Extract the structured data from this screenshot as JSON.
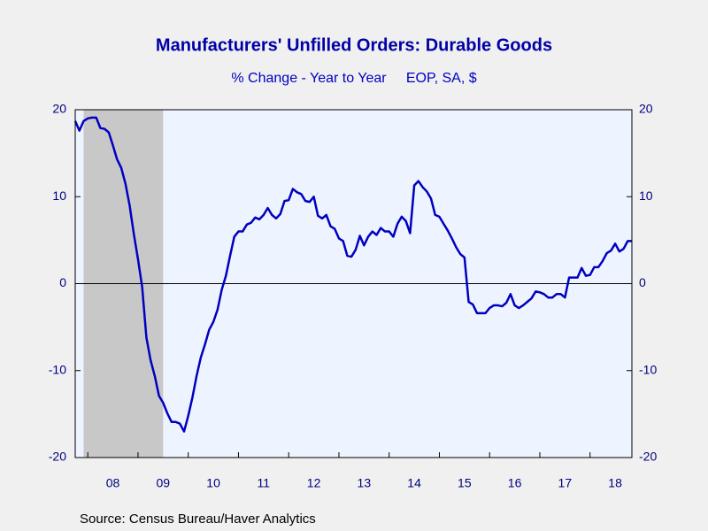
{
  "chart_data": {
    "type": "line",
    "title": "Manufacturers' Unfilled Orders: Durable Goods",
    "subtitle": "% Change - Year to Year     EOP, SA, $",
    "source": "Source:  Census Bureau/Haver Analytics",
    "x": [
      2007.75,
      2007.833,
      2007.917,
      2008,
      2008.083,
      2008.167,
      2008.25,
      2008.333,
      2008.417,
      2008.5,
      2008.583,
      2008.667,
      2008.75,
      2008.833,
      2008.917,
      2009,
      2009.083,
      2009.167,
      2009.25,
      2009.333,
      2009.417,
      2009.5,
      2009.583,
      2009.667,
      2009.75,
      2009.833,
      2009.917,
      2010,
      2010.083,
      2010.167,
      2010.25,
      2010.333,
      2010.417,
      2010.5,
      2010.583,
      2010.667,
      2010.75,
      2010.833,
      2010.917,
      2011,
      2011.083,
      2011.167,
      2011.25,
      2011.333,
      2011.417,
      2011.5,
      2011.583,
      2011.667,
      2011.75,
      2011.833,
      2011.917,
      2012,
      2012.083,
      2012.167,
      2012.25,
      2012.333,
      2012.417,
      2012.5,
      2012.583,
      2012.667,
      2012.75,
      2012.833,
      2012.917,
      2013,
      2013.083,
      2013.167,
      2013.25,
      2013.333,
      2013.417,
      2013.5,
      2013.583,
      2013.667,
      2013.75,
      2013.833,
      2013.917,
      2014,
      2014.083,
      2014.167,
      2014.25,
      2014.333,
      2014.417,
      2014.5,
      2014.583,
      2014.667,
      2014.75,
      2014.833,
      2014.917,
      2015,
      2015.083,
      2015.167,
      2015.25,
      2015.333,
      2015.417,
      2015.5,
      2015.583,
      2015.667,
      2015.75,
      2015.833,
      2015.917,
      2016,
      2016.083,
      2016.167,
      2016.25,
      2016.333,
      2016.417,
      2016.5,
      2016.583,
      2016.667,
      2016.75,
      2016.833,
      2016.917,
      2017,
      2017.083,
      2017.167,
      2017.25,
      2017.333,
      2017.417,
      2017.5,
      2017.583,
      2017.667,
      2017.75,
      2017.833,
      2017.917,
      2018,
      2018.083,
      2018.167,
      2018.25,
      2018.333,
      2018.417,
      2018.5,
      2018.583,
      2018.667,
      2018.75,
      2018.833
    ],
    "series": [
      {
        "color": "#0000c0",
        "values": [
          18.7,
          17.6,
          18.7,
          19.0,
          19.1,
          19.1,
          17.9,
          17.8,
          17.4,
          15.9,
          14.3,
          13.3,
          11.5,
          9.0,
          5.7,
          2.8,
          -0.4,
          -6.2,
          -8.8,
          -10.6,
          -12.9,
          -13.7,
          -14.9,
          -15.9,
          -15.9,
          -16.1,
          -17.0,
          -15.2,
          -13.1,
          -10.6,
          -8.5,
          -7.0,
          -5.3,
          -4.4,
          -3.0,
          -0.7,
          0.9,
          3.2,
          5.4,
          6.0,
          6.0,
          6.8,
          7.0,
          7.6,
          7.4,
          7.9,
          8.7,
          7.9,
          7.5,
          8.0,
          9.5,
          9.6,
          10.9,
          10.5,
          10.3,
          9.5,
          9.4,
          10.0,
          7.8,
          7.5,
          7.9,
          6.6,
          6.3,
          5.2,
          4.9,
          3.2,
          3.1,
          3.9,
          5.5,
          4.4,
          5.4,
          6.0,
          5.6,
          6.4,
          6.0,
          6.0,
          5.4,
          6.9,
          7.7,
          7.2,
          5.8,
          11.3,
          11.8,
          11.1,
          10.6,
          9.8,
          7.9,
          7.7,
          6.9,
          6.1,
          5.2,
          4.2,
          3.4,
          3.0,
          -2.1,
          -2.4,
          -3.4,
          -3.4,
          -3.4,
          -2.8,
          -2.5,
          -2.5,
          -2.6,
          -2.2,
          -1.2,
          -2.5,
          -2.8,
          -2.5,
          -2.1,
          -1.7,
          -0.9,
          -1.0,
          -1.2,
          -1.6,
          -1.6,
          -1.2,
          -1.2,
          -1.6,
          0.7,
          0.7,
          0.7,
          1.8,
          0.9,
          1.0,
          1.9,
          1.9,
          2.6,
          3.5,
          3.8,
          4.6,
          3.7,
          4.0,
          4.9,
          4.9
        ]
      }
    ],
    "xlim": [
      2007.75,
      2018.833
    ],
    "xticks": [
      2008,
      2009,
      2010,
      2011,
      2012,
      2013,
      2014,
      2015,
      2016,
      2017,
      2018
    ],
    "xtick_labels": [
      {
        "value": 2008.5,
        "label": "08"
      },
      {
        "value": 2009.5,
        "label": "09"
      },
      {
        "value": 2010.5,
        "label": "10"
      },
      {
        "value": 2011.5,
        "label": "11"
      },
      {
        "value": 2012.5,
        "label": "12"
      },
      {
        "value": 2013.5,
        "label": "13"
      },
      {
        "value": 2014.5,
        "label": "14"
      },
      {
        "value": 2015.5,
        "label": "15"
      },
      {
        "value": 2016.5,
        "label": "16"
      },
      {
        "value": 2017.5,
        "label": "17"
      },
      {
        "value": 2018.5,
        "label": "18"
      }
    ],
    "ylim": [
      -20,
      20
    ],
    "yticks": [
      -20,
      -10,
      0,
      10,
      20
    ],
    "y2lim": [
      -20,
      20
    ],
    "y2ticks": [
      -20,
      -10,
      0,
      10,
      20
    ],
    "shaded": [
      2007.917,
      2009.5
    ],
    "shade_color": "#c8c8c8",
    "zero_line": true
  }
}
